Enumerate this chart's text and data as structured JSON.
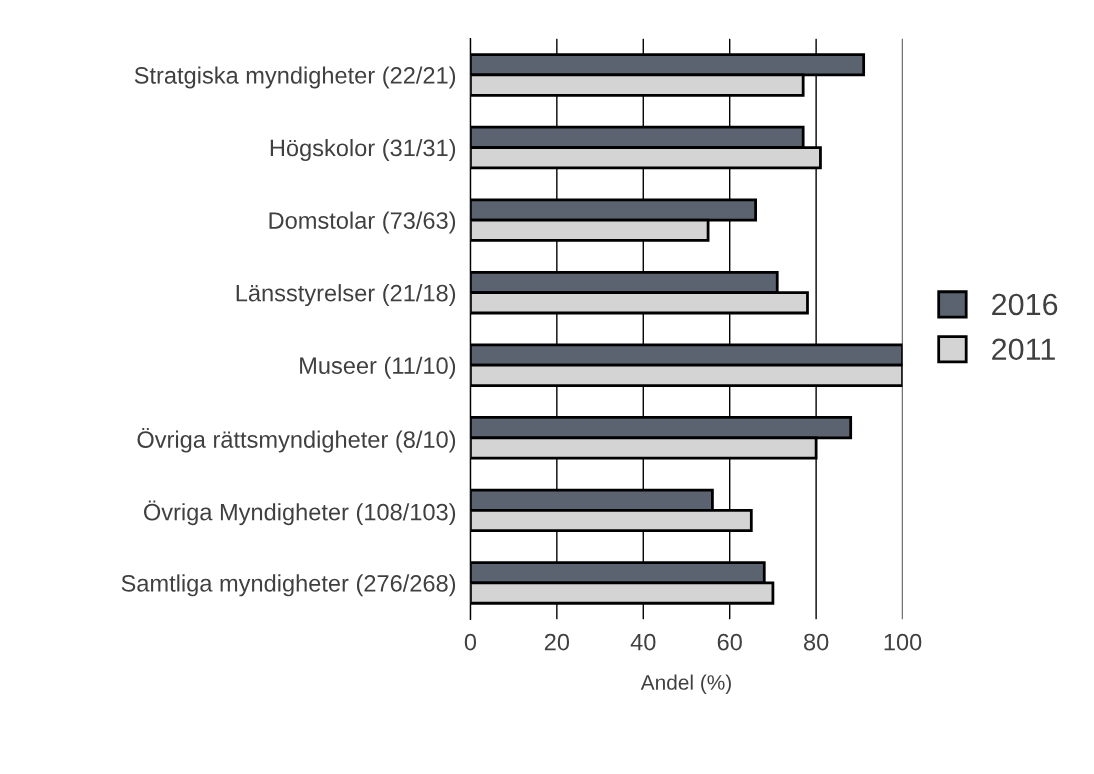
{
  "chart_data": {
    "type": "bar",
    "orientation": "horizontal",
    "categories": [
      "Stratgiska myndigheter (22/21)",
      "Högskolor (31/31)",
      "Domstolar (73/63)",
      "Länsstyrelser (21/18)",
      "Museer (11/10)",
      "Övriga rättsmyndigheter (8/10)",
      "Övriga Myndigheter (108/103)",
      "Samtliga myndigheter (276/268)"
    ],
    "series": [
      {
        "name": "2016",
        "color": "#5b6370",
        "values": [
          91,
          77,
          66,
          71,
          100,
          88,
          56,
          68
        ]
      },
      {
        "name": "2011",
        "color": "#d4d4d4",
        "values": [
          77,
          81,
          55,
          78,
          100,
          80,
          65,
          70
        ]
      }
    ],
    "xlabel": "Andel (%)",
    "xlim": [
      0,
      100
    ],
    "xticks": [
      0,
      20,
      40,
      60,
      80,
      100
    ],
    "grid": "x",
    "legend": "right"
  }
}
